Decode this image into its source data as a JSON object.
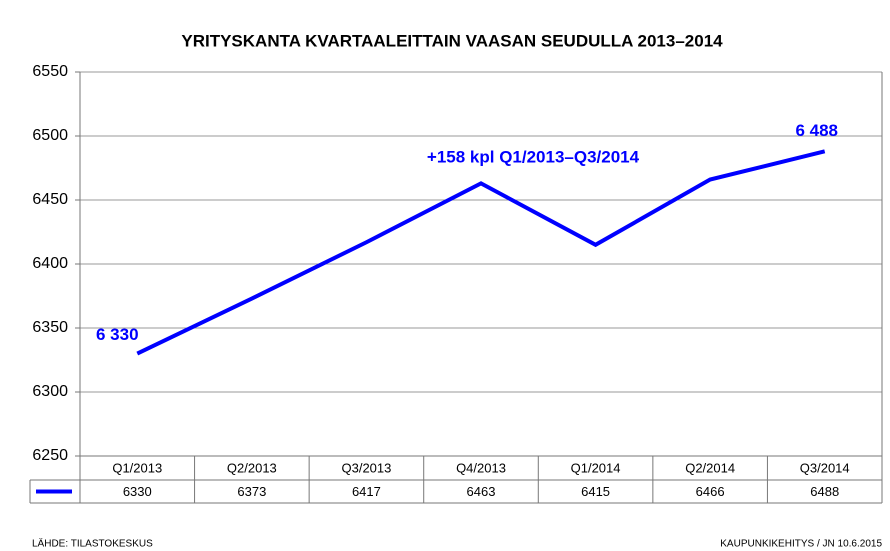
{
  "chart_data": {
    "type": "line",
    "title": "YRITYSKANTA KVARTAALEITTAIN VAASAN SEUDULLA 2013–2014",
    "categories": [
      "Q1/2013",
      "Q2/2013",
      "Q3/2013",
      "Q4/2013",
      "Q1/2014",
      "Q2/2014",
      "Q3/2014"
    ],
    "values": [
      6330,
      6373,
      6417,
      6463,
      6415,
      6466,
      6488
    ],
    "value_labels": [
      "6 330",
      null,
      null,
      null,
      null,
      null,
      "6 488"
    ],
    "color": "#0000ff",
    "ylim": [
      6250,
      6550
    ],
    "yticks": [
      6250,
      6300,
      6350,
      6400,
      6450,
      6500,
      6550
    ],
    "grid": true,
    "annotation": "+158 kpl Q1/2013–Q3/2014",
    "source": "LÄHDE: TILASTOKESKUS",
    "credit": "KAUPUNKIKEHITYS  / JN 10.6.2015"
  }
}
